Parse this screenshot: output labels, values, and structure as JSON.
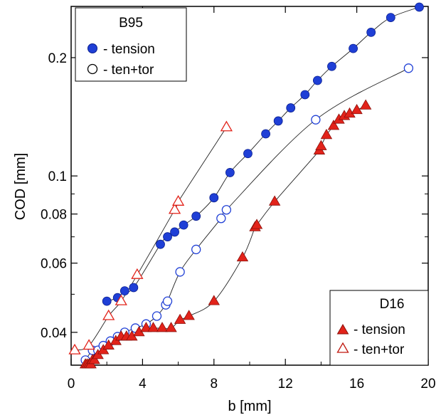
{
  "chart_data": {
    "type": "scatter",
    "xlabel": "b [mm]",
    "ylabel": "COD [mm]",
    "xlim": [
      0,
      20
    ],
    "ylim": [
      0.033,
      0.27
    ],
    "y_scale": "log",
    "x_ticks": [
      0,
      4,
      8,
      12,
      16,
      20
    ],
    "x_tick_labels": [
      "0",
      "4",
      "8",
      "12",
      "16",
      "20"
    ],
    "y_ticks": [
      0.04,
      0.06,
      0.08,
      0.1,
      0.2
    ],
    "y_tick_labels": [
      "0.04",
      "0.06",
      "0.08",
      "0.1",
      "0.2"
    ],
    "grid": false,
    "legends": [
      {
        "title": "B95",
        "placement": "top-left",
        "entries": [
          "- tension",
          "- ten+tor"
        ]
      },
      {
        "title": "D16",
        "placement": "bottom-right",
        "entries": [
          "- tension",
          "- ten+tor"
        ]
      }
    ],
    "series": [
      {
        "name": "B95 - tension",
        "marker": "circle-filled",
        "color": "#1f3fd6",
        "points": [
          [
            2.0,
            0.048
          ],
          [
            2.6,
            0.049
          ],
          [
            3.0,
            0.051
          ],
          [
            3.5,
            0.052
          ],
          [
            5.0,
            0.067
          ],
          [
            5.4,
            0.07
          ],
          [
            5.8,
            0.072
          ],
          [
            6.3,
            0.075
          ],
          [
            7.0,
            0.079
          ],
          [
            8.0,
            0.088
          ],
          [
            8.9,
            0.102
          ],
          [
            9.9,
            0.114
          ],
          [
            10.9,
            0.128
          ],
          [
            11.6,
            0.138
          ],
          [
            12.3,
            0.149
          ],
          [
            13.1,
            0.161
          ],
          [
            13.8,
            0.175
          ],
          [
            14.6,
            0.19
          ],
          [
            15.8,
            0.211
          ],
          [
            16.8,
            0.232
          ],
          [
            17.9,
            0.253
          ],
          [
            19.5,
            0.285
          ]
        ]
      },
      {
        "name": "B95 - ten+tor",
        "marker": "circle-open",
        "color": "#1f3fd6",
        "points": [
          [
            0.8,
            0.034
          ],
          [
            1.2,
            0.036
          ],
          [
            1.5,
            0.036
          ],
          [
            1.8,
            0.037
          ],
          [
            2.2,
            0.038
          ],
          [
            2.6,
            0.039
          ],
          [
            3.0,
            0.04
          ],
          [
            3.6,
            0.041
          ],
          [
            4.2,
            0.042
          ],
          [
            4.8,
            0.044
          ],
          [
            5.3,
            0.047
          ],
          [
            5.4,
            0.048
          ],
          [
            6.1,
            0.057
          ],
          [
            7.0,
            0.065
          ],
          [
            8.4,
            0.078
          ],
          [
            8.7,
            0.082
          ],
          [
            13.7,
            0.139
          ],
          [
            18.9,
            0.188
          ]
        ]
      },
      {
        "name": "D16 - tension",
        "marker": "triangle-filled",
        "color": "#e2231a",
        "points": [
          [
            0.8,
            0.03
          ],
          [
            0.9,
            0.031
          ],
          [
            1.0,
            0.032
          ],
          [
            1.1,
            0.033
          ],
          [
            1.2,
            0.034
          ],
          [
            1.3,
            0.034
          ],
          [
            1.5,
            0.035
          ],
          [
            1.8,
            0.036
          ],
          [
            2.1,
            0.037
          ],
          [
            2.5,
            0.038
          ],
          [
            2.8,
            0.039
          ],
          [
            3.1,
            0.039
          ],
          [
            3.4,
            0.039
          ],
          [
            3.8,
            0.04
          ],
          [
            4.2,
            0.041
          ],
          [
            4.6,
            0.041
          ],
          [
            5.1,
            0.041
          ],
          [
            5.6,
            0.041
          ],
          [
            6.1,
            0.043
          ],
          [
            6.6,
            0.044
          ],
          [
            8.0,
            0.048
          ],
          [
            9.6,
            0.062
          ],
          [
            10.3,
            0.074
          ],
          [
            10.4,
            0.075
          ],
          [
            11.4,
            0.086
          ],
          [
            13.9,
            0.116
          ],
          [
            14.0,
            0.119
          ],
          [
            14.3,
            0.127
          ],
          [
            14.7,
            0.134
          ],
          [
            15.0,
            0.139
          ],
          [
            15.3,
            0.142
          ],
          [
            15.6,
            0.144
          ],
          [
            16.0,
            0.147
          ],
          [
            16.5,
            0.151
          ]
        ]
      },
      {
        "name": "D16 - ten+tor",
        "marker": "triangle-open",
        "color": "#e2231a",
        "points": [
          [
            0.2,
            0.036
          ],
          [
            1.0,
            0.037
          ],
          [
            2.1,
            0.044
          ],
          [
            2.8,
            0.048
          ],
          [
            3.7,
            0.056
          ],
          [
            5.8,
            0.082
          ],
          [
            6.0,
            0.086
          ],
          [
            8.7,
            0.133
          ]
        ]
      }
    ]
  }
}
